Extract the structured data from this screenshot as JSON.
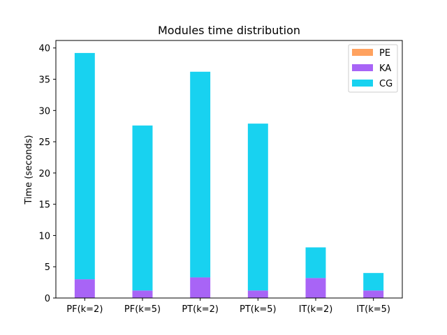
{
  "chart_data": {
    "type": "bar",
    "stacked": true,
    "title": "Modules time distribution",
    "xlabel": "",
    "ylabel": "Time (seconds)",
    "ylim": [
      0,
      41.2
    ],
    "yticks": [
      0,
      5,
      10,
      15,
      20,
      25,
      30,
      35,
      40
    ],
    "categories": [
      "PF(k=2)",
      "PF(k=5)",
      "PT(k=2)",
      "PT(k=5)",
      "IT(k=2)",
      "IT(k=5)"
    ],
    "series": [
      {
        "name": "PE",
        "color": "#ffa25f",
        "values": [
          0.0,
          0.0,
          0.0,
          0.0,
          0.0,
          0.0
        ]
      },
      {
        "name": "KA",
        "color": "#a864f6",
        "values": [
          3.0,
          1.2,
          3.3,
          1.2,
          3.2,
          1.2
        ]
      },
      {
        "name": "CG",
        "color": "#18d2f0",
        "values": [
          36.2,
          26.4,
          32.9,
          26.7,
          4.9,
          2.8
        ]
      }
    ],
    "legend_position": "top-right",
    "grid": false
  }
}
